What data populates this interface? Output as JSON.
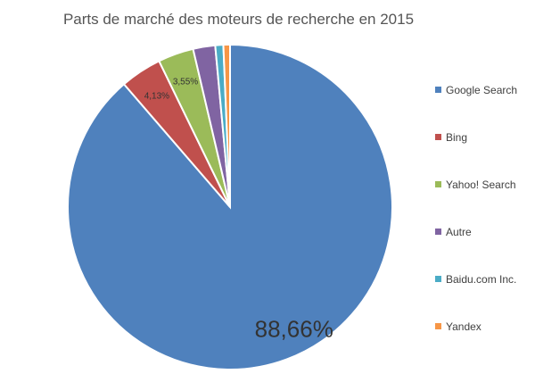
{
  "chart_data": {
    "type": "pie",
    "title": "Parts de marché des moteurs de recherche en 2015",
    "legend_position": "right",
    "series": [
      {
        "name": "Google Search",
        "value": 88.66,
        "color": "#4f81bd"
      },
      {
        "name": "Bing",
        "value": 4.13,
        "color": "#c0504d"
      },
      {
        "name": "Yahoo! Search",
        "value": 3.55,
        "color": "#9bbb59"
      },
      {
        "name": "Autre",
        "value": 2.2,
        "color": "#8064a2"
      },
      {
        "name": "Baidu.com Inc.",
        "value": 0.8,
        "color": "#4bacc6"
      },
      {
        "name": "Yandex",
        "value": 0.66,
        "color": "#f79646"
      }
    ],
    "data_labels": [
      "88,66%",
      "4,13%",
      "3,55%"
    ]
  }
}
